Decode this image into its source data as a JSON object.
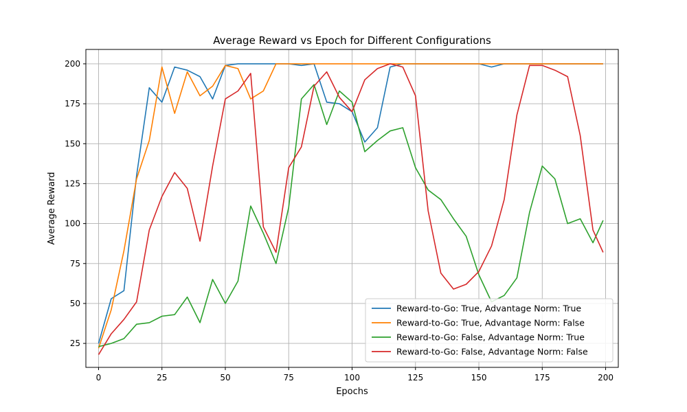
{
  "chart_data": {
    "type": "line",
    "title": "Average Reward vs Epoch for Different Configurations",
    "xlabel": "Epochs",
    "ylabel": "Average Reward",
    "xlim": [
      -5,
      205
    ],
    "ylim": [
      10,
      209
    ],
    "xticks": [
      0,
      25,
      50,
      75,
      100,
      125,
      150,
      175,
      200
    ],
    "yticks": [
      25,
      50,
      75,
      100,
      125,
      150,
      175,
      200
    ],
    "grid": true,
    "legend_position": "lower right",
    "x": [
      0,
      5,
      10,
      15,
      20,
      25,
      30,
      35,
      40,
      45,
      50,
      55,
      60,
      65,
      70,
      75,
      80,
      85,
      90,
      95,
      100,
      105,
      110,
      115,
      120,
      125,
      130,
      135,
      140,
      145,
      150,
      155,
      160,
      165,
      170,
      175,
      180,
      185,
      190,
      195,
      199
    ],
    "series": [
      {
        "name": "Reward-to-Go: True, Advantage Norm: True",
        "color": "#1f77b4",
        "values": [
          25,
          53,
          58,
          130,
          185,
          176,
          198,
          196,
          192,
          178,
          199,
          200,
          200,
          200,
          200,
          200,
          199,
          200,
          176,
          175,
          170,
          151,
          160,
          198,
          200,
          200,
          200,
          200,
          200,
          200,
          200,
          198,
          200,
          200,
          200,
          200,
          200,
          200,
          200,
          200,
          200
        ]
      },
      {
        "name": "Reward-to-Go: True, Advantage Norm: False",
        "color": "#ff7f00",
        "values": [
          22,
          46,
          83,
          128,
          152,
          198,
          169,
          195,
          180,
          186,
          199,
          197,
          178,
          183,
          200,
          200,
          200,
          200,
          200,
          200,
          200,
          200,
          200,
          200,
          200,
          200,
          200,
          200,
          200,
          200,
          200,
          200,
          200,
          200,
          200,
          200,
          200,
          200,
          200,
          200,
          200
        ]
      },
      {
        "name": "Reward-to-Go: False, Advantage Norm: True",
        "color": "#2ca02c",
        "values": [
          23,
          25,
          28,
          37,
          38,
          42,
          43,
          54,
          38,
          65,
          50,
          64,
          111,
          94,
          75,
          110,
          178,
          187,
          162,
          183,
          176,
          145,
          152,
          158,
          160,
          135,
          121,
          115,
          103,
          92,
          68,
          51,
          55,
          66,
          107,
          136,
          128,
          100,
          103,
          88,
          102
        ]
      },
      {
        "name": "Reward-to-Go: False, Advantage Norm: False",
        "color": "#d62728",
        "values": [
          18,
          31,
          40,
          51,
          96,
          117,
          132,
          122,
          89,
          136,
          178,
          183,
          194,
          98,
          82,
          135,
          148,
          186,
          195,
          179,
          170,
          190,
          197,
          200,
          198,
          180,
          108,
          69,
          59,
          62,
          70,
          86,
          115,
          168,
          199,
          199,
          196,
          192,
          155,
          96,
          82
        ]
      }
    ]
  }
}
